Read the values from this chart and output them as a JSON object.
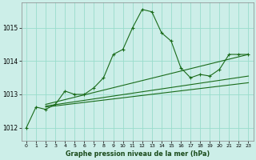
{
  "title": "Graphe pression niveau de la mer (hPa)",
  "bg_color": "#cceee8",
  "grid_color": "#99ddcc",
  "line_color": "#1a6b1a",
  "x_ticks": [
    0,
    1,
    2,
    3,
    4,
    5,
    6,
    7,
    8,
    9,
    10,
    11,
    12,
    13,
    14,
    15,
    16,
    17,
    18,
    19,
    20,
    21,
    22,
    23
  ],
  "y_ticks": [
    1012,
    1013,
    1014,
    1015
  ],
  "ylim": [
    1011.6,
    1015.75
  ],
  "xlim": [
    -0.5,
    23.5
  ],
  "line1_x": [
    0,
    1,
    2,
    3,
    4,
    5,
    6,
    7,
    8,
    9,
    10,
    11,
    12,
    13,
    14,
    15,
    16,
    17,
    18,
    19,
    20,
    21,
    22,
    23
  ],
  "line1_y": [
    1012.0,
    1012.62,
    1012.55,
    1012.7,
    1013.1,
    1013.0,
    1013.0,
    1013.2,
    1013.5,
    1014.2,
    1014.35,
    1015.0,
    1015.55,
    1015.48,
    1014.85,
    1014.6,
    1013.8,
    1013.5,
    1013.6,
    1013.55,
    1013.75,
    1014.2,
    1014.2,
    1014.2
  ],
  "line2_x": [
    2,
    23
  ],
  "line2_y": [
    1012.7,
    1014.2
  ],
  "line3_x": [
    2,
    23
  ],
  "line3_y": [
    1012.65,
    1013.55
  ],
  "line4_x": [
    2,
    23
  ],
  "line4_y": [
    1012.62,
    1013.35
  ]
}
